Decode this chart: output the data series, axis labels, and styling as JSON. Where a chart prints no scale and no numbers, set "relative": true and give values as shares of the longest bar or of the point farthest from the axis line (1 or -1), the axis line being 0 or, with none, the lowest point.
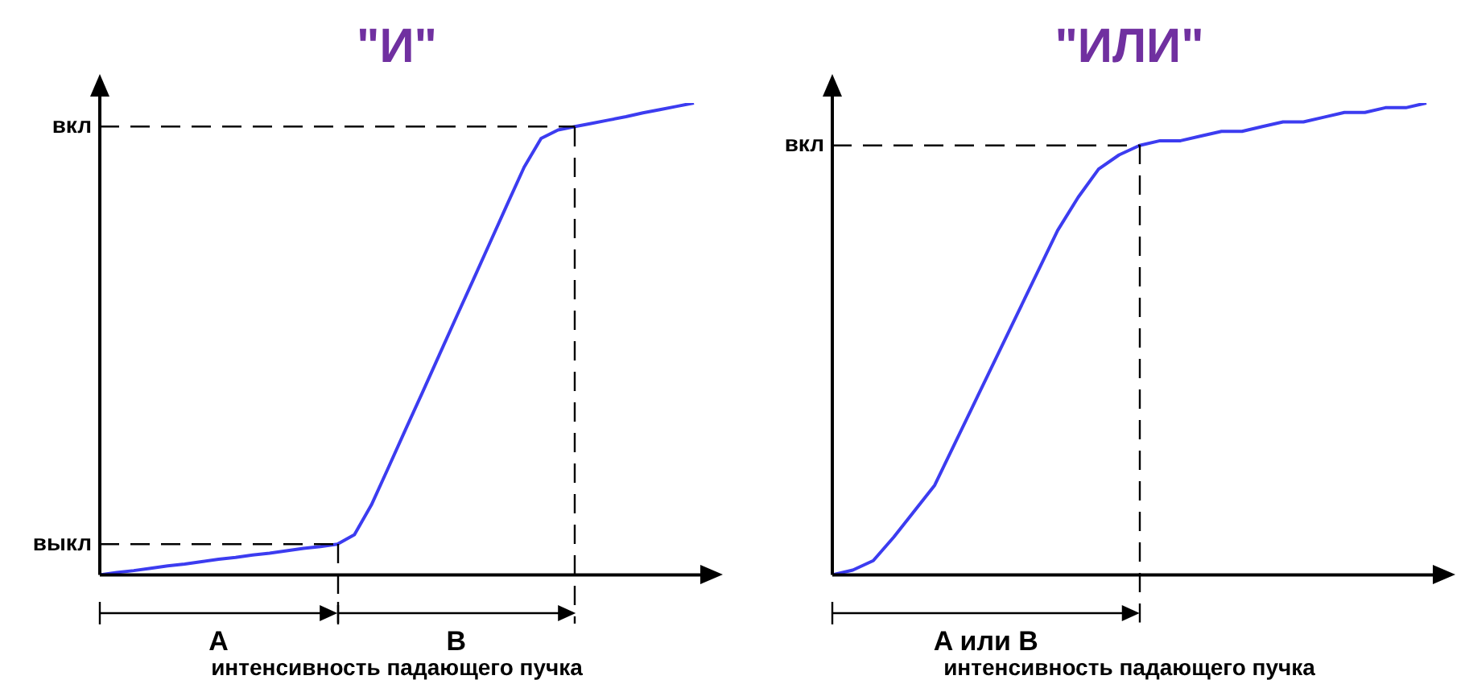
{
  "chart_data": [
    {
      "type": "line",
      "title": "\"И\"",
      "xlabel": "интенсивность падающего пучка",
      "relative": true,
      "legend": false,
      "marker": "none",
      "line_style": "solid",
      "categories": [
        null,
        null,
        null,
        null,
        null,
        null,
        null,
        null,
        null,
        null,
        null,
        null,
        null,
        null,
        null,
        null,
        null,
        null,
        null,
        null,
        null,
        null,
        null,
        null,
        null,
        null,
        null,
        null,
        null,
        null,
        null,
        null,
        null,
        null,
        null,
        null
      ],
      "series": [
        {
          "color": "#3c3cf0",
          "values": [
            0,
            0.005,
            0.009,
            0.014,
            0.019,
            0.023,
            0.028,
            0.033,
            0.037,
            0.042,
            0.046,
            0.051,
            0.056,
            0.06,
            0.065,
            0.085,
            0.148,
            0.227,
            0.307,
            0.386,
            0.466,
            0.546,
            0.625,
            0.705,
            0.785,
            0.864,
            0.925,
            0.943,
            0.95,
            0.957,
            0.964,
            0.971,
            0.979,
            0.986,
            0.993,
            1
          ]
        }
      ],
      "ref_lines": [
        {
          "axis": "y",
          "value": 0.95,
          "label": "вкл"
        },
        {
          "axis": "y",
          "value": 0.065,
          "label": "выкл"
        }
      ],
      "annotations": [
        "A",
        "B"
      ]
    },
    {
      "type": "line",
      "title": "\"ИЛИ\"",
      "xlabel": "интенсивность падающего пучка",
      "relative": true,
      "legend": false,
      "marker": "none",
      "line_style": "solid",
      "categories": [
        null,
        null,
        null,
        null,
        null,
        null,
        null,
        null,
        null,
        null,
        null,
        null,
        null,
        null,
        null,
        null,
        null,
        null,
        null,
        null,
        null,
        null,
        null,
        null,
        null,
        null,
        null,
        null,
        null,
        null
      ],
      "series": [
        {
          "color": "#3c3cf0",
          "values": [
            0,
            0.01,
            0.03,
            0.08,
            0.135,
            0.19,
            0.28,
            0.37,
            0.46,
            0.55,
            0.64,
            0.73,
            0.8,
            0.86,
            0.89,
            0.91,
            0.92,
            0.92,
            0.93,
            0.94,
            0.94,
            0.95,
            0.96,
            0.96,
            0.97,
            0.98,
            0.98,
            0.99,
            0.99,
            1
          ]
        }
      ],
      "ref_lines": [
        {
          "axis": "y",
          "value": 0.91,
          "label": "вкл"
        }
      ],
      "annotations": [
        "A или B"
      ]
    }
  ]
}
